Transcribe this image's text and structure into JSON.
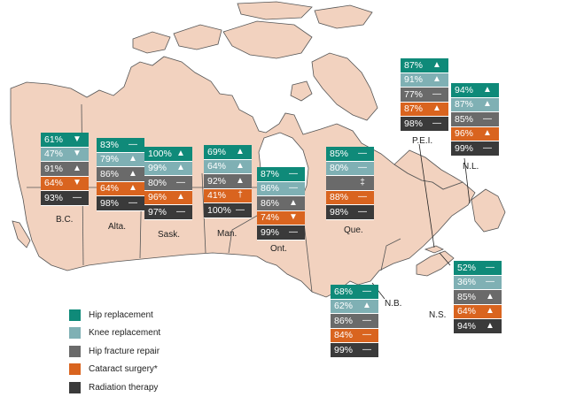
{
  "colors": {
    "hip_replacement": "#0f8a79",
    "knee_replacement": "#7fb0b4",
    "hip_fracture_repair": "#6a6a6a",
    "cataract_surgery": "#d9641f",
    "radiation_therapy": "#3a3a3a",
    "land": "#f2d2bf",
    "border": "#555555"
  },
  "legend": [
    {
      "label": "Hip replacement",
      "color": "#0f8a79"
    },
    {
      "label": "Knee replacement",
      "color": "#7fb0b4"
    },
    {
      "label": "Hip fracture repair",
      "color": "#6a6a6a"
    },
    {
      "label": "Cataract surgery*",
      "color": "#d9641f"
    },
    {
      "label": "Radiation therapy",
      "color": "#3a3a3a"
    }
  ],
  "provinces": [
    {
      "name": "B.C.",
      "rows": [
        {
          "value": "61%",
          "icon": "down-triangle"
        },
        {
          "value": "47%",
          "icon": "down-triangle"
        },
        {
          "value": "91%",
          "icon": "up-triangle"
        },
        {
          "value": "64%",
          "icon": "down-triangle"
        },
        {
          "value": "93%",
          "icon": "dash"
        }
      ]
    },
    {
      "name": "Alta.",
      "rows": [
        {
          "value": "83%",
          "icon": "dash"
        },
        {
          "value": "79%",
          "icon": "up-triangle"
        },
        {
          "value": "86%",
          "icon": "up-triangle"
        },
        {
          "value": "64%",
          "icon": "up-triangle"
        },
        {
          "value": "98%",
          "icon": "dash"
        }
      ]
    },
    {
      "name": "Sask.",
      "rows": [
        {
          "value": "100%",
          "icon": "up-triangle"
        },
        {
          "value": "99%",
          "icon": "up-triangle"
        },
        {
          "value": "80%",
          "icon": "dash"
        },
        {
          "value": "96%",
          "icon": "up-triangle"
        },
        {
          "value": "97%",
          "icon": "dash"
        }
      ]
    },
    {
      "name": "Man.",
      "rows": [
        {
          "value": "69%",
          "icon": "up-triangle"
        },
        {
          "value": "64%",
          "icon": "up-triangle"
        },
        {
          "value": "92%",
          "icon": "up-triangle"
        },
        {
          "value": "41%",
          "icon": "dagger"
        },
        {
          "value": "100%",
          "icon": "dash"
        }
      ]
    },
    {
      "name": "Ont.",
      "rows": [
        {
          "value": "87%",
          "icon": "dash"
        },
        {
          "value": "86%",
          "icon": "dash"
        },
        {
          "value": "86%",
          "icon": "up-triangle"
        },
        {
          "value": "74%",
          "icon": "down-triangle"
        },
        {
          "value": "99%",
          "icon": "dash"
        }
      ]
    },
    {
      "name": "Que.",
      "rows": [
        {
          "value": "85%",
          "icon": "dash"
        },
        {
          "value": "80%",
          "icon": "dash"
        },
        {
          "value": "",
          "icon": "double-dagger"
        },
        {
          "value": "88%",
          "icon": "dash"
        },
        {
          "value": "98%",
          "icon": "dash"
        }
      ]
    },
    {
      "name": "P.E.I.",
      "rows": [
        {
          "value": "87%",
          "icon": "up-triangle"
        },
        {
          "value": "91%",
          "icon": "up-triangle"
        },
        {
          "value": "77%",
          "icon": "dash"
        },
        {
          "value": "87%",
          "icon": "up-triangle"
        },
        {
          "value": "98%",
          "icon": "dash"
        }
      ]
    },
    {
      "name": "N.L.",
      "rows": [
        {
          "value": "94%",
          "icon": "up-triangle"
        },
        {
          "value": "87%",
          "icon": "up-triangle"
        },
        {
          "value": "85%",
          "icon": "dash"
        },
        {
          "value": "96%",
          "icon": "up-triangle"
        },
        {
          "value": "99%",
          "icon": "dash"
        }
      ]
    },
    {
      "name": "N.B.",
      "rows": [
        {
          "value": "68%",
          "icon": "dash"
        },
        {
          "value": "62%",
          "icon": "up-triangle"
        },
        {
          "value": "86%",
          "icon": "dash"
        },
        {
          "value": "84%",
          "icon": "dash"
        },
        {
          "value": "99%",
          "icon": "dash"
        }
      ]
    },
    {
      "name": "N.S.",
      "rows": [
        {
          "value": "52%",
          "icon": "dash"
        },
        {
          "value": "36%",
          "icon": "dash"
        },
        {
          "value": "85%",
          "icon": "up-triangle"
        },
        {
          "value": "64%",
          "icon": "up-triangle"
        },
        {
          "value": "94%",
          "icon": "up-triangle"
        }
      ]
    }
  ]
}
